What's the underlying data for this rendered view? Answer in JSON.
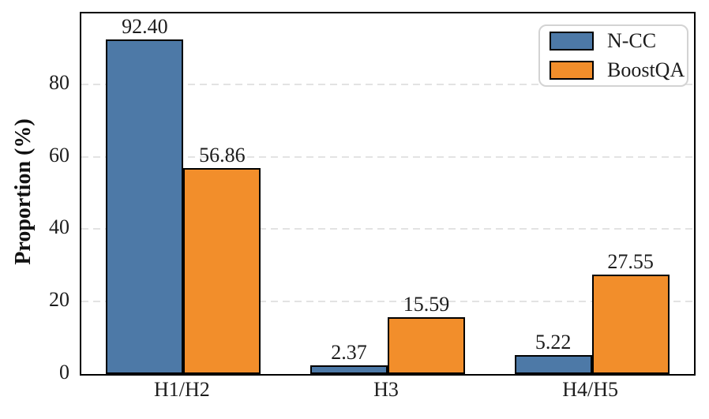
{
  "chart_data": {
    "type": "bar",
    "title": "",
    "xlabel": "",
    "ylabel": "Proportion (%)",
    "categories": [
      "H1/H2",
      "H3",
      "H4/H5"
    ],
    "series": [
      {
        "name": "N-CC",
        "color": "#4D79A7",
        "values": [
          92.4,
          2.37,
          5.22
        ],
        "value_labels": [
          "92.40",
          "2.37",
          "5.22"
        ]
      },
      {
        "name": "BoostQA",
        "color": "#F28E2B",
        "values": [
          56.86,
          15.59,
          27.55
        ],
        "value_labels": [
          "56.86",
          "15.59",
          "27.55"
        ]
      }
    ],
    "ylim": [
      0,
      99.6
    ],
    "yticks": [
      0,
      20,
      40,
      60,
      80
    ],
    "ytick_labels": [
      "0",
      "20",
      "40",
      "60",
      "80"
    ],
    "grid": "horizontal-dashed",
    "grid_color": "#e3e3e3",
    "legend_position": "upper-right",
    "bar_edge_color": "#000000",
    "axis_color": "#000000"
  }
}
